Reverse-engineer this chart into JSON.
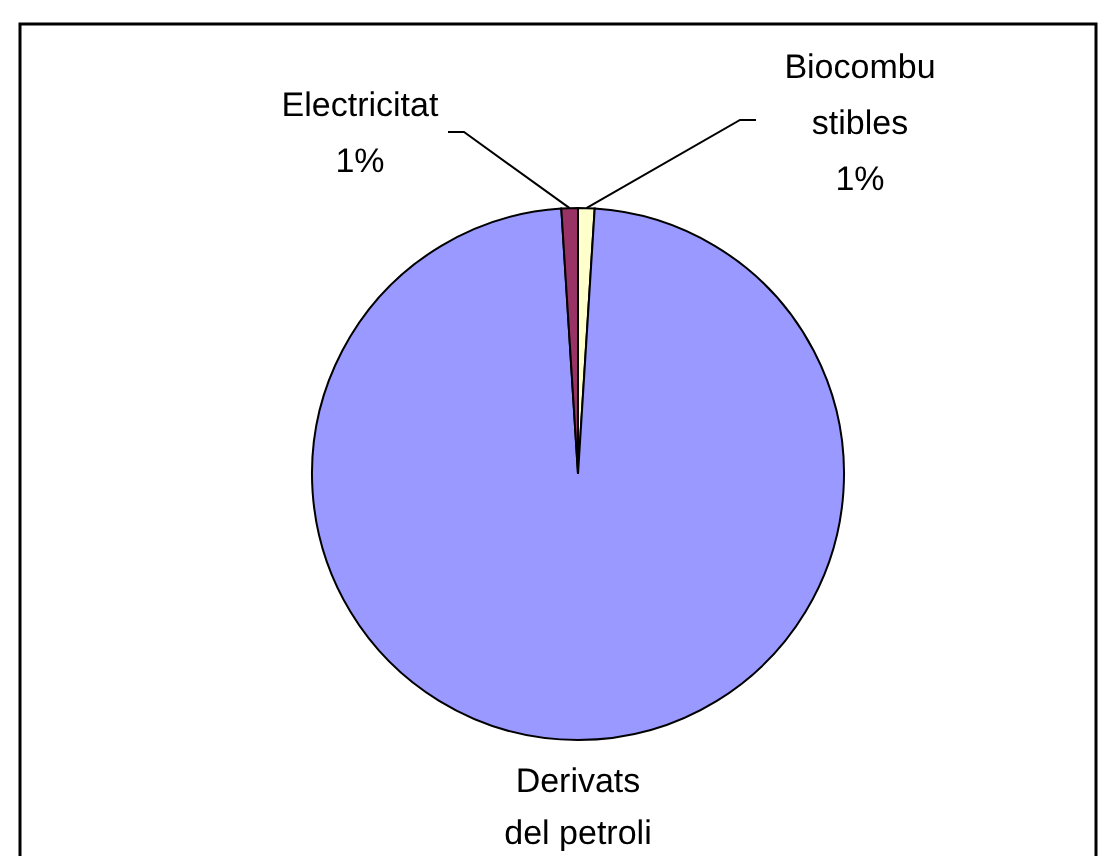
{
  "chart_data": {
    "type": "pie",
    "categories": [
      "Biocombu\nstibles",
      "Derivats\ndel petroli",
      "Electricitat"
    ],
    "values": [
      1,
      98,
      1
    ],
    "colors": [
      "#ffffcc",
      "#9999ff",
      "#993366"
    ],
    "value_labels": [
      "1%",
      null,
      "1%"
    ]
  }
}
